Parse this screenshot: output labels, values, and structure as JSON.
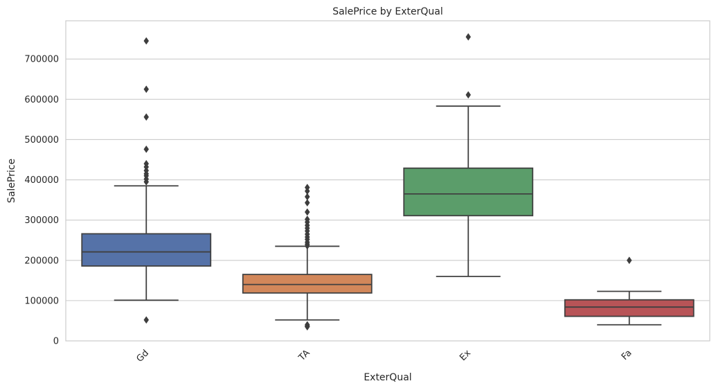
{
  "chart_data": {
    "type": "box",
    "title": "SalePrice by ExterQual",
    "xlabel": "ExterQual",
    "ylabel": "SalePrice",
    "ylim": [
      0,
      795000
    ],
    "yticks": [
      0,
      100000,
      200000,
      300000,
      400000,
      500000,
      600000,
      700000
    ],
    "ytick_labels": [
      "0",
      "100000",
      "200000",
      "300000",
      "400000",
      "500000",
      "600000",
      "700000"
    ],
    "grid": "horizontal",
    "categories": [
      "Gd",
      "TA",
      "Ex",
      "Fa"
    ],
    "boxes": [
      {
        "category": "Gd",
        "color": "#5572a8",
        "q1": 186000,
        "median": 221000,
        "q3": 266000,
        "whisker_low": 101000,
        "whisker_high": 385000,
        "outliers": [
          745000,
          625000,
          556000,
          476000,
          440000,
          432000,
          423000,
          415000,
          410000,
          402000,
          395000,
          52000
        ]
      },
      {
        "category": "TA",
        "color": "#d2875a",
        "q1": 119000,
        "median": 140000,
        "q3": 165000,
        "whisker_low": 52000,
        "whisker_high": 235000,
        "outliers": [
          381000,
          372000,
          358000,
          343000,
          320000,
          302000,
          295000,
          287000,
          280000,
          273000,
          265000,
          258000,
          252000,
          245000,
          240000,
          236000,
          40000,
          37000,
          35000
        ]
      },
      {
        "category": "Ex",
        "color": "#5b9d6a",
        "q1": 311000,
        "median": 365000,
        "q3": 429000,
        "whisker_low": 160000,
        "whisker_high": 583000,
        "outliers": [
          755000,
          611000
        ]
      },
      {
        "category": "Fa",
        "color": "#b85457",
        "q1": 61000,
        "median": 84000,
        "q3": 102000,
        "whisker_low": 40000,
        "whisker_high": 123000,
        "outliers": [
          200000
        ]
      }
    ]
  }
}
